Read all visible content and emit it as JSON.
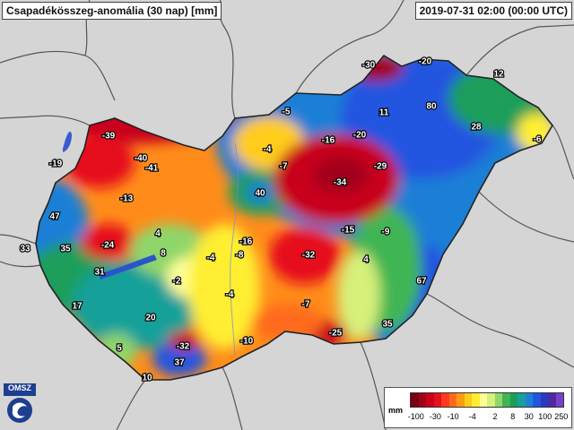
{
  "header": {
    "title": "Csapadékösszeg-anomália (30 nap) [mm]",
    "timestamp": "2019-07-31 02:00 (00:00 UTC)"
  },
  "legend": {
    "unit": "mm",
    "ticks": [
      "-100",
      "-30",
      "-10",
      "-4",
      "2",
      "8",
      "30",
      "100",
      "250"
    ],
    "colors": [
      "#7a0010",
      "#a0001a",
      "#c8001e",
      "#e60f1e",
      "#ff3a1e",
      "#ff6a1a",
      "#ff9a14",
      "#ffcc1a",
      "#ffee33",
      "#ffff99",
      "#d6f07a",
      "#8fd66b",
      "#3fb553",
      "#1a9e5a",
      "#16a09a",
      "#1f7fd6",
      "#2255e0",
      "#2a3bbf",
      "#4b2aa8",
      "#7a3fc8"
    ]
  },
  "logo": {
    "text": "OMSZ"
  },
  "map": {
    "values": [
      "-30",
      "-20",
      "12",
      "-19",
      "-39",
      "-40",
      "-41",
      "-5",
      "-16",
      "-20",
      "11",
      "80",
      "28",
      "-6",
      "-4",
      "-7",
      "-29",
      "-34",
      "40",
      "-13",
      "47",
      "-24",
      "4",
      "8",
      "-16",
      "-32",
      "-15",
      "-9",
      "33",
      "35",
      "31",
      "-4",
      "-8",
      "-2",
      "-4",
      "4",
      "67",
      "17",
      "20",
      "-7",
      "-10",
      "-25",
      "35",
      "5",
      "-32",
      "37",
      "10"
    ]
  }
}
